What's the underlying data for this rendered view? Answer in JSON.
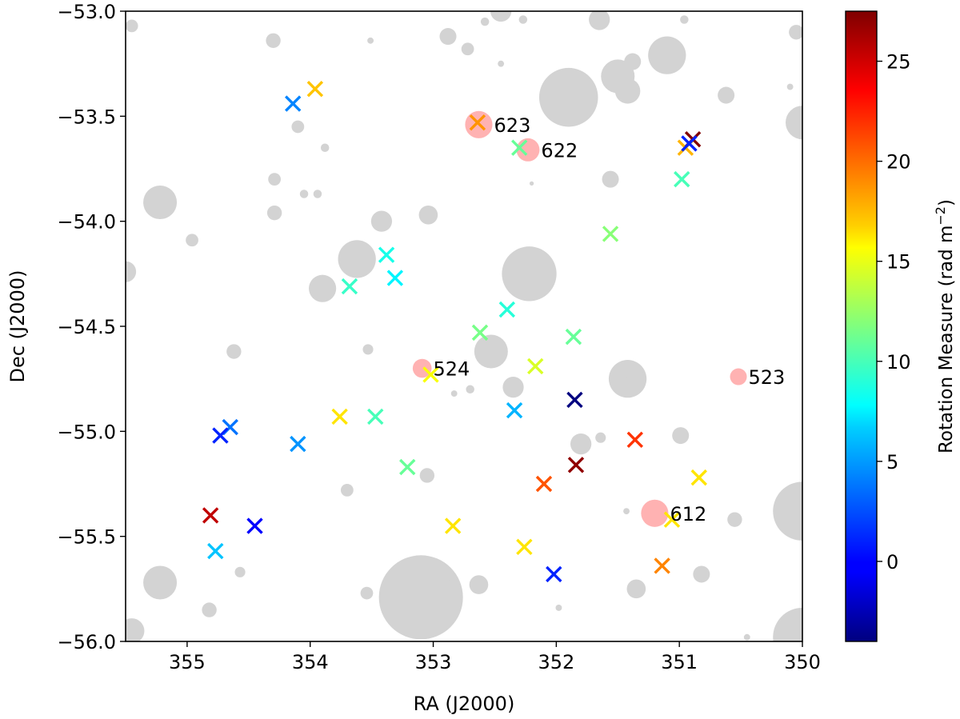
{
  "chart_data": {
    "type": "scatter",
    "title": "",
    "xlabel": "RA (J2000)",
    "ylabel": "Dec (J2000)",
    "xlim": [
      355.5,
      350
    ],
    "ylim": [
      -56,
      -53
    ],
    "x_inverted": true,
    "grid": false,
    "xticks": [
      355,
      354,
      353,
      352,
      351,
      350
    ],
    "xtick_labels": [
      "355",
      "354",
      "353",
      "352",
      "351",
      "350"
    ],
    "yticks": [
      -53.0,
      -53.5,
      -54.0,
      -54.5,
      -55.0,
      -55.5,
      -56.0
    ],
    "ytick_labels": [
      "−53.0",
      "−53.5",
      "−54.0",
      "−54.5",
      "−55.0",
      "−55.5",
      "−56.0"
    ],
    "colorbar": {
      "label": "Rotation Measure (rad m",
      "label_exponent": "−2",
      "label_close": ")",
      "colormap": "jet",
      "vmin": -4,
      "vmax": 27.5,
      "ticks": [
        0,
        5,
        10,
        15,
        20,
        25
      ],
      "tick_labels": [
        "0",
        "5",
        "10",
        "15",
        "20",
        "25"
      ]
    },
    "background_sources": {
      "color": "#d3d3d3",
      "points": [
        {
          "ra": 355.22,
          "dec": -53.91,
          "r": 0.08
        },
        {
          "ra": 354.96,
          "dec": -54.09,
          "r": 0.03
        },
        {
          "ra": 355.45,
          "dec": -53.07,
          "r": 0.03
        },
        {
          "ra": 354.3,
          "dec": -53.14,
          "r": 0.035
        },
        {
          "ra": 353.51,
          "dec": -53.14,
          "r": 0.015
        },
        {
          "ra": 352.88,
          "dec": -53.12,
          "r": 0.04
        },
        {
          "ra": 352.72,
          "dec": -53.18,
          "r": 0.03
        },
        {
          "ra": 352.45,
          "dec": -53.0,
          "r": 0.05
        },
        {
          "ra": 352.58,
          "dec": -53.05,
          "r": 0.02
        },
        {
          "ra": 352.27,
          "dec": -53.04,
          "r": 0.02
        },
        {
          "ra": 351.65,
          "dec": -53.04,
          "r": 0.05
        },
        {
          "ra": 350.96,
          "dec": -53.04,
          "r": 0.02
        },
        {
          "ra": 352.45,
          "dec": -53.25,
          "r": 0.015
        },
        {
          "ra": 351.9,
          "dec": -53.41,
          "r": 0.14
        },
        {
          "ra": 351.5,
          "dec": -53.31,
          "r": 0.08
        },
        {
          "ra": 351.42,
          "dec": -53.38,
          "r": 0.06
        },
        {
          "ra": 351.38,
          "dec": -53.24,
          "r": 0.04
        },
        {
          "ra": 351.1,
          "dec": -53.21,
          "r": 0.09
        },
        {
          "ra": 350.62,
          "dec": -53.4,
          "r": 0.04
        },
        {
          "ra": 350.1,
          "dec": -53.36,
          "r": 0.015
        },
        {
          "ra": 350.05,
          "dec": -53.1,
          "r": 0.035
        },
        {
          "ra": 350.0,
          "dec": -53.53,
          "r": 0.08
        },
        {
          "ra": 354.1,
          "dec": -53.55,
          "r": 0.03
        },
        {
          "ra": 353.88,
          "dec": -53.65,
          "r": 0.02
        },
        {
          "ra": 352.2,
          "dec": -53.82,
          "r": 0.01
        },
        {
          "ra": 351.56,
          "dec": -53.8,
          "r": 0.04
        },
        {
          "ra": 354.29,
          "dec": -53.8,
          "r": 0.03
        },
        {
          "ra": 354.05,
          "dec": -53.87,
          "r": 0.02
        },
        {
          "ra": 353.94,
          "dec": -53.87,
          "r": 0.02
        },
        {
          "ra": 354.29,
          "dec": -53.96,
          "r": 0.035
        },
        {
          "ra": 353.42,
          "dec": -54.0,
          "r": 0.05
        },
        {
          "ra": 353.04,
          "dec": -53.97,
          "r": 0.045
        },
        {
          "ra": 355.5,
          "dec": -54.24,
          "r": 0.05
        },
        {
          "ra": 353.62,
          "dec": -54.18,
          "r": 0.09
        },
        {
          "ra": 352.22,
          "dec": -54.25,
          "r": 0.13
        },
        {
          "ra": 353.9,
          "dec": -54.32,
          "r": 0.065
        },
        {
          "ra": 353.53,
          "dec": -54.61,
          "r": 0.025
        },
        {
          "ra": 352.53,
          "dec": -54.62,
          "r": 0.08
        },
        {
          "ra": 352.35,
          "dec": -54.79,
          "r": 0.05
        },
        {
          "ra": 352.7,
          "dec": -54.8,
          "r": 0.02
        },
        {
          "ra": 351.42,
          "dec": -54.75,
          "r": 0.09
        },
        {
          "ra": 351.36,
          "dec": -54.73,
          "r": 0.04
        },
        {
          "ra": 354.62,
          "dec": -54.62,
          "r": 0.035
        },
        {
          "ra": 352.83,
          "dec": -54.82,
          "r": 0.015
        },
        {
          "ra": 351.8,
          "dec": -55.06,
          "r": 0.05
        },
        {
          "ra": 351.64,
          "dec": -55.03,
          "r": 0.025
        },
        {
          "ra": 350.99,
          "dec": -55.02,
          "r": 0.04
        },
        {
          "ra": 353.05,
          "dec": -55.21,
          "r": 0.035
        },
        {
          "ra": 353.7,
          "dec": -55.28,
          "r": 0.03
        },
        {
          "ra": 351.43,
          "dec": -55.38,
          "r": 0.015
        },
        {
          "ra": 350.55,
          "dec": -55.42,
          "r": 0.035
        },
        {
          "ra": 350.0,
          "dec": -55.38,
          "r": 0.14
        },
        {
          "ra": 353.1,
          "dec": -55.79,
          "r": 0.2
        },
        {
          "ra": 355.22,
          "dec": -55.72,
          "r": 0.08
        },
        {
          "ra": 354.57,
          "dec": -55.67,
          "r": 0.025
        },
        {
          "ra": 352.85,
          "dec": -55.7,
          "r": 0.015
        },
        {
          "ra": 353.54,
          "dec": -55.77,
          "r": 0.03
        },
        {
          "ra": 352.63,
          "dec": -55.73,
          "r": 0.045
        },
        {
          "ra": 351.35,
          "dec": -55.75,
          "r": 0.045
        },
        {
          "ra": 350.82,
          "dec": -55.68,
          "r": 0.04
        },
        {
          "ra": 350.0,
          "dec": -55.98,
          "r": 0.14
        },
        {
          "ra": 351.98,
          "dec": -55.84,
          "r": 0.015
        },
        {
          "ra": 355.45,
          "dec": -55.95,
          "r": 0.06
        },
        {
          "ra": 354.82,
          "dec": -55.85,
          "r": 0.035
        },
        {
          "ra": 350.45,
          "dec": -55.98,
          "r": 0.015
        }
      ]
    },
    "highlighted_sources": {
      "color": "#ffb2b2",
      "points": [
        {
          "ra": 352.63,
          "dec": -53.54,
          "r": 0.065,
          "label": "623"
        },
        {
          "ra": 352.23,
          "dec": -53.66,
          "r": 0.055,
          "label": "622"
        },
        {
          "ra": 353.09,
          "dec": -54.7,
          "r": 0.045,
          "label": "524"
        },
        {
          "ra": 350.52,
          "dec": -54.74,
          "r": 0.04,
          "label": "523"
        },
        {
          "ra": 351.2,
          "dec": -55.39,
          "r": 0.065,
          "label": "612"
        }
      ]
    },
    "series": [
      {
        "marker": "x",
        "ra": [
          353.96,
          354.14,
          352.64,
          352.3,
          350.95,
          350.89,
          350.92,
          350.98,
          351.56,
          353.38,
          353.31,
          353.68,
          352.62,
          352.4,
          351.86,
          352.17,
          353.02,
          351.85,
          354.65,
          354.73,
          354.1,
          353.76,
          353.47,
          352.34,
          353.21,
          351.36,
          352.1,
          351.84,
          350.84,
          354.81,
          354.45,
          354.77,
          352.84,
          352.26,
          351.06,
          351.14,
          352.02
        ],
        "dec": [
          -53.37,
          -53.44,
          -53.53,
          -53.65,
          -53.65,
          -53.61,
          -53.63,
          -53.8,
          -54.06,
          -54.16,
          -54.27,
          -54.31,
          -54.53,
          -54.42,
          -54.55,
          -54.69,
          -54.73,
          -54.85,
          -54.98,
          -55.02,
          -55.06,
          -54.93,
          -54.93,
          -54.9,
          -55.17,
          -55.04,
          -55.25,
          -55.16,
          -55.22,
          -55.4,
          -55.45,
          -55.57,
          -55.45,
          -55.55,
          -55.42,
          -55.64,
          -55.68
        ],
        "rm": [
          17.5,
          4,
          19,
          11,
          18,
          27.5,
          1,
          10,
          12,
          8.5,
          7.5,
          9.5,
          11.5,
          9,
          11,
          14.5,
          15.5,
          -4,
          3.5,
          1,
          4.5,
          16.5,
          10,
          5.5,
          11,
          22,
          21,
          27,
          16.5,
          25.5,
          0,
          6,
          16.5,
          16.5,
          16.5,
          19.5,
          1
        ]
      }
    ]
  }
}
